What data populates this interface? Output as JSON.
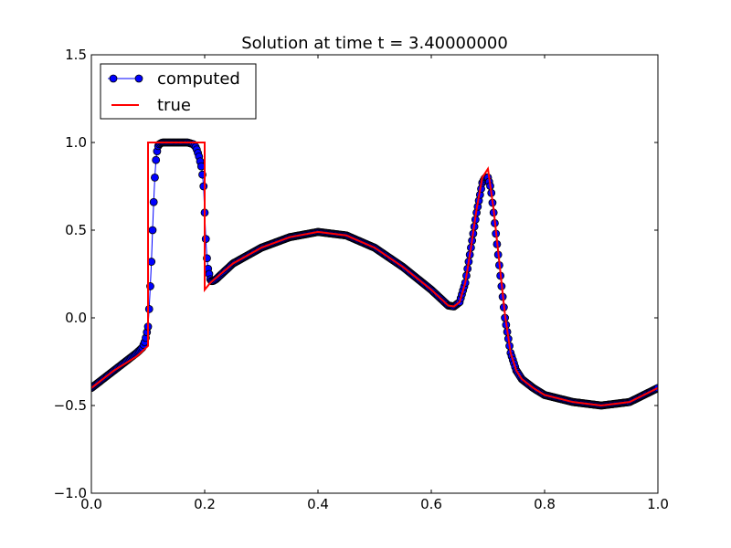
{
  "chart_data": {
    "type": "line",
    "title": "Solution at time t =     3.40000000",
    "xlabel": "",
    "ylabel": "",
    "xlim": [
      0.0,
      1.0
    ],
    "ylim": [
      -1.0,
      1.5
    ],
    "xticks": [
      "0.0",
      "0.2",
      "0.4",
      "0.6",
      "0.8",
      "1.0"
    ],
    "yticks": [
      "−1.0",
      "−0.5",
      "0.0",
      "0.5",
      "1.0",
      "1.5"
    ],
    "grid": false,
    "legend_position": "top-left",
    "series": [
      {
        "name": "computed",
        "style": "line-with-markers",
        "color": "#0000ff",
        "marker_edge": "#000000",
        "x": [
          0.0,
          0.02,
          0.04,
          0.06,
          0.08,
          0.09,
          0.095,
          0.1,
          0.102,
          0.104,
          0.106,
          0.108,
          0.11,
          0.112,
          0.114,
          0.116,
          0.118,
          0.12,
          0.125,
          0.13,
          0.15,
          0.17,
          0.18,
          0.185,
          0.19,
          0.195,
          0.198,
          0.2,
          0.202,
          0.204,
          0.206,
          0.208,
          0.21,
          0.212,
          0.215,
          0.22,
          0.25,
          0.3,
          0.35,
          0.4,
          0.45,
          0.5,
          0.55,
          0.6,
          0.62,
          0.63,
          0.64,
          0.65,
          0.66,
          0.67,
          0.68,
          0.69,
          0.695,
          0.7,
          0.705,
          0.71,
          0.72,
          0.73,
          0.74,
          0.75,
          0.76,
          0.78,
          0.8,
          0.85,
          0.9,
          0.95,
          1.0
        ],
        "y": [
          -0.4,
          -0.35,
          -0.3,
          -0.25,
          -0.2,
          -0.17,
          -0.13,
          -0.05,
          0.05,
          0.18,
          0.32,
          0.5,
          0.66,
          0.8,
          0.9,
          0.95,
          0.98,
          0.99,
          1.0,
          1.0,
          1.0,
          1.0,
          0.99,
          0.97,
          0.92,
          0.85,
          0.75,
          0.6,
          0.45,
          0.34,
          0.28,
          0.25,
          0.22,
          0.21,
          0.21,
          0.22,
          0.31,
          0.4,
          0.46,
          0.49,
          0.47,
          0.4,
          0.29,
          0.16,
          0.1,
          0.07,
          0.065,
          0.09,
          0.2,
          0.4,
          0.6,
          0.77,
          0.8,
          0.8,
          0.74,
          0.6,
          0.3,
          0.0,
          -0.2,
          -0.3,
          -0.35,
          -0.4,
          -0.44,
          -0.48,
          -0.5,
          -0.48,
          -0.4
        ]
      },
      {
        "name": "true",
        "style": "line",
        "color": "#ff0000",
        "x": [
          0.0,
          0.02,
          0.04,
          0.06,
          0.08,
          0.09,
          0.1,
          0.1,
          0.2,
          0.2,
          0.21,
          0.25,
          0.3,
          0.35,
          0.4,
          0.45,
          0.5,
          0.55,
          0.6,
          0.62,
          0.63,
          0.64,
          0.65,
          0.66,
          0.67,
          0.68,
          0.69,
          0.7,
          0.71,
          0.72,
          0.73,
          0.74,
          0.75,
          0.76,
          0.78,
          0.8,
          0.85,
          0.9,
          0.95,
          1.0
        ],
        "y": [
          -0.4,
          -0.35,
          -0.3,
          -0.26,
          -0.22,
          -0.19,
          -0.16,
          1.0,
          1.0,
          0.16,
          0.2,
          0.31,
          0.4,
          0.46,
          0.49,
          0.47,
          0.4,
          0.29,
          0.16,
          0.1,
          0.07,
          0.065,
          0.09,
          0.2,
          0.4,
          0.62,
          0.8,
          0.85,
          0.62,
          0.32,
          0.02,
          -0.2,
          -0.3,
          -0.35,
          -0.4,
          -0.44,
          -0.48,
          -0.5,
          -0.48,
          -0.4
        ]
      }
    ]
  }
}
